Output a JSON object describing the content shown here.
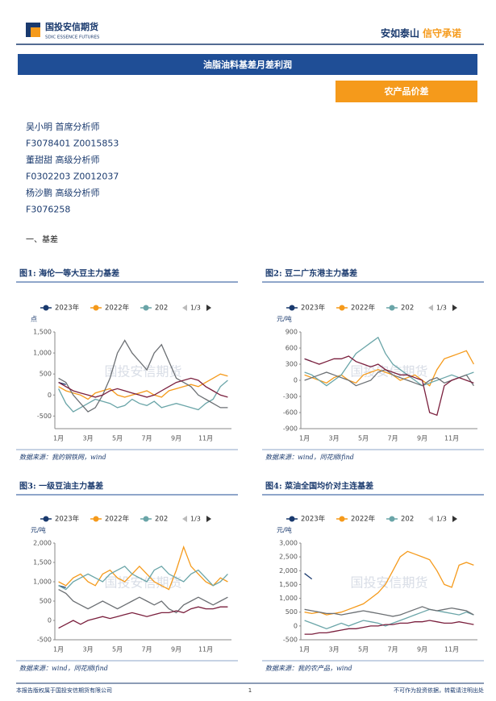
{
  "header": {
    "logo": "国投安信期货",
    "logo_en": "SDIC ESSENCE FUTURES",
    "slogan_a": "安如泰山",
    "slogan_b": "信守承诺"
  },
  "title": "油脂油料基差月差利润",
  "tag": "农产品价差",
  "analysts": [
    "吴小明 首席分析师",
    "F3078401 Z0015853",
    "董甜甜 高级分析师",
    "F0302203 Z0012037",
    "杨沙鹏 高级分析师",
    "F3076258"
  ],
  "section": "一、基差",
  "watermark": "国投安信期货",
  "pager": "1/3",
  "charts": [
    {
      "type": "line",
      "caption": "图1: 海伦一等大豆主力基差",
      "unit": "点",
      "source": "数据来源：我的钢铁网，wind",
      "categories": [
        "1月",
        null,
        null,
        null,
        "3月",
        null,
        null,
        null,
        "5月",
        null,
        null,
        null,
        "7月",
        null,
        null,
        null,
        "9月",
        null,
        null,
        null,
        "11月",
        null,
        null,
        null
      ],
      "ylim": [
        -800,
        1500
      ],
      "yticks": [
        {
          "value": 1500,
          "label": "1,500"
        },
        {
          "value": 1000,
          "label": "1,000"
        },
        500,
        0,
        -500
      ],
      "series": [
        {
          "name": "2023年",
          "color": "#1a3a6e",
          "values": [
            300,
            250,
            null,
            null,
            null,
            null,
            null,
            null,
            null,
            null,
            null,
            null,
            null,
            null,
            null,
            null,
            null,
            null,
            null,
            null,
            null,
            null,
            null,
            null
          ]
        },
        {
          "name": "2022年",
          "color": "#f59a1b",
          "values": [
            200,
            100,
            50,
            0,
            -100,
            50,
            100,
            150,
            0,
            -50,
            0,
            50,
            100,
            0,
            -50,
            100,
            150,
            200,
            250,
            200,
            300,
            400,
            500,
            450
          ]
        },
        {
          "name": "202",
          "color": "#6aa5a8",
          "values": [
            150,
            -200,
            -400,
            -300,
            -200,
            -100,
            -150,
            -200,
            -300,
            -250,
            -100,
            -200,
            -250,
            -150,
            -300,
            -250,
            -200,
            -250,
            -300,
            -350,
            -200,
            -100,
            200,
            350
          ]
        },
        {
          "color": "#6b6f73",
          "values": [
            400,
            300,
            0,
            -200,
            -400,
            -300,
            0,
            400,
            1000,
            1300,
            1000,
            800,
            600,
            1000,
            1200,
            800,
            400,
            300,
            200,
            0,
            -100,
            -200,
            -300,
            -300
          ]
        },
        {
          "color": "#7a1f3d",
          "values": [
            300,
            200,
            100,
            50,
            0,
            -50,
            0,
            100,
            150,
            100,
            50,
            0,
            -50,
            0,
            100,
            200,
            300,
            350,
            400,
            350,
            200,
            100,
            0,
            -50
          ]
        }
      ]
    },
    {
      "type": "line",
      "caption": "图2: 豆二广东港主力基差",
      "unit": "元/吨",
      "source": "数据来源：wind，同花顺ifind",
      "categories": [
        "1月",
        null,
        null,
        null,
        "3月",
        null,
        null,
        null,
        "5月",
        null,
        null,
        null,
        "7月",
        null,
        null,
        null,
        "9月",
        null,
        null,
        null,
        "11月",
        null,
        null,
        null
      ],
      "ylim": [
        -900,
        900
      ],
      "yticks": [
        900,
        600,
        300,
        0,
        -300,
        -600,
        -900
      ],
      "series": [
        {
          "name": "2023年",
          "color": "#1a3a6e",
          "values": [
            400,
            350,
            null,
            null,
            null,
            null,
            null,
            null,
            null,
            null,
            null,
            null,
            null,
            null,
            null,
            null,
            null,
            null,
            null,
            null,
            null,
            null,
            null,
            null
          ]
        },
        {
          "name": "2022年",
          "color": "#f59a1b",
          "values": [
            100,
            50,
            0,
            -50,
            50,
            100,
            0,
            -50,
            100,
            150,
            200,
            150,
            100,
            0,
            50,
            100,
            0,
            -100,
            200,
            400,
            450,
            500,
            550,
            300
          ]
        },
        {
          "name": "202",
          "color": "#6aa5a8",
          "values": [
            150,
            100,
            0,
            -100,
            0,
            100,
            300,
            500,
            600,
            700,
            800,
            500,
            300,
            200,
            100,
            0,
            -100,
            -50,
            0,
            50,
            100,
            50,
            100,
            150
          ]
        },
        {
          "color": "#6b6f73",
          "values": [
            0,
            50,
            100,
            150,
            100,
            50,
            0,
            -100,
            -50,
            0,
            150,
            200,
            100,
            50,
            0,
            -50,
            -100,
            0,
            50,
            -50,
            0,
            50,
            100,
            -100
          ]
        },
        {
          "color": "#7a1f3d",
          "values": [
            400,
            350,
            300,
            350,
            400,
            400,
            450,
            350,
            300,
            250,
            300,
            200,
            150,
            100,
            100,
            50,
            0,
            -600,
            -650,
            -100,
            0,
            50,
            0,
            -50
          ]
        }
      ]
    },
    {
      "type": "line",
      "caption": "图3: 一级豆油主力基差",
      "unit": "元/吨",
      "source": "数据来源：wind，同花顺ifind",
      "categories": [
        "1月",
        null,
        null,
        null,
        "3月",
        null,
        null,
        null,
        "5月",
        null,
        null,
        null,
        "7月",
        null,
        null,
        null,
        "9月",
        null,
        null,
        null,
        "11月",
        null,
        null,
        null
      ],
      "ylim": [
        -500,
        2000
      ],
      "yticks": [
        {
          "value": 2000,
          "label": "2,000"
        },
        {
          "value": 1500,
          "label": "1,500"
        },
        {
          "value": 1000,
          "label": "1,000"
        },
        500,
        0,
        -500
      ],
      "series": [
        {
          "name": "2023年",
          "color": "#1a3a6e",
          "values": [
            900,
            850,
            null,
            null,
            null,
            null,
            null,
            null,
            null,
            null,
            null,
            null,
            null,
            null,
            null,
            null,
            null,
            null,
            null,
            null,
            null,
            null,
            null,
            null
          ]
        },
        {
          "name": "2022年",
          "color": "#f59a1b",
          "values": [
            1000,
            900,
            1100,
            1200,
            1000,
            900,
            1200,
            1300,
            1100,
            1000,
            1200,
            1400,
            1200,
            1000,
            900,
            800,
            1300,
            1900,
            1400,
            1200,
            1000,
            900,
            1100,
            1000
          ]
        },
        {
          "name": "202",
          "color": "#6aa5a8",
          "values": [
            900,
            800,
            1000,
            1100,
            1200,
            1100,
            1000,
            1200,
            1300,
            1400,
            1200,
            1100,
            1000,
            1300,
            1400,
            1200,
            1100,
            1000,
            1200,
            1300,
            1100,
            900,
            1000,
            1200
          ]
        },
        {
          "color": "#6b6f73",
          "values": [
            800,
            700,
            500,
            400,
            300,
            400,
            500,
            400,
            300,
            400,
            500,
            600,
            500,
            400,
            500,
            300,
            200,
            400,
            500,
            600,
            500,
            400,
            500,
            600
          ]
        },
        {
          "color": "#7a1f3d",
          "values": [
            -200,
            -100,
            0,
            -100,
            0,
            50,
            100,
            50,
            100,
            150,
            200,
            150,
            100,
            150,
            200,
            200,
            250,
            200,
            300,
            350,
            300,
            300,
            350,
            350
          ]
        }
      ]
    },
    {
      "type": "line",
      "caption": "图4: 菜油全国均价对主连基差",
      "unit": "元/吨",
      "source": "数据来源：我的农产品，wind",
      "categories": [
        "1月",
        null,
        null,
        null,
        "3月",
        null,
        null,
        null,
        "5月",
        null,
        null,
        null,
        "7月",
        null,
        null,
        null,
        "9月",
        null,
        null,
        null,
        "11月",
        null,
        null,
        null
      ],
      "ylim": [
        -500,
        3000
      ],
      "yticks": [
        {
          "value": 3000,
          "label": "3,000"
        },
        {
          "value": 2500,
          "label": "2,500"
        },
        {
          "value": 2000,
          "label": "2,000"
        },
        {
          "value": 1500,
          "label": "1,500"
        },
        {
          "value": 1000,
          "label": "1,000"
        },
        500,
        0,
        -500
      ],
      "series": [
        {
          "name": "2023年",
          "color": "#1a3a6e",
          "values": [
            1900,
            1700,
            null,
            null,
            null,
            null,
            null,
            null,
            null,
            null,
            null,
            null,
            null,
            null,
            null,
            null,
            null,
            null,
            null,
            null,
            null,
            null,
            null,
            null
          ]
        },
        {
          "name": "2022年",
          "color": "#f59a1b",
          "values": [
            500,
            450,
            500,
            400,
            450,
            500,
            600,
            700,
            800,
            1000,
            1200,
            1500,
            2000,
            2500,
            2700,
            2600,
            2500,
            2400,
            2000,
            1500,
            1400,
            2200,
            2300,
            2200
          ]
        },
        {
          "name": "202",
          "color": "#6aa5a8",
          "values": [
            200,
            100,
            0,
            -100,
            0,
            100,
            0,
            100,
            200,
            150,
            100,
            0,
            100,
            200,
            300,
            400,
            500,
            600,
            550,
            500,
            450,
            400,
            500,
            400
          ]
        },
        {
          "color": "#6b6f73",
          "values": [
            600,
            550,
            500,
            450,
            450,
            400,
            450,
            500,
            550,
            500,
            450,
            400,
            350,
            400,
            500,
            600,
            700,
            600,
            550,
            600,
            650,
            600,
            550,
            400
          ]
        },
        {
          "color": "#7a1f3d",
          "values": [
            -300,
            -300,
            -250,
            -250,
            -200,
            -150,
            -100,
            -100,
            -50,
            0,
            0,
            50,
            50,
            100,
            100,
            150,
            150,
            200,
            150,
            100,
            100,
            150,
            100,
            50
          ]
        }
      ]
    }
  ],
  "footer": {
    "left": "本报告版权属于国投安信期货有限公司",
    "page": "1",
    "right": "不可作为投资依据，转载请注明出处"
  }
}
